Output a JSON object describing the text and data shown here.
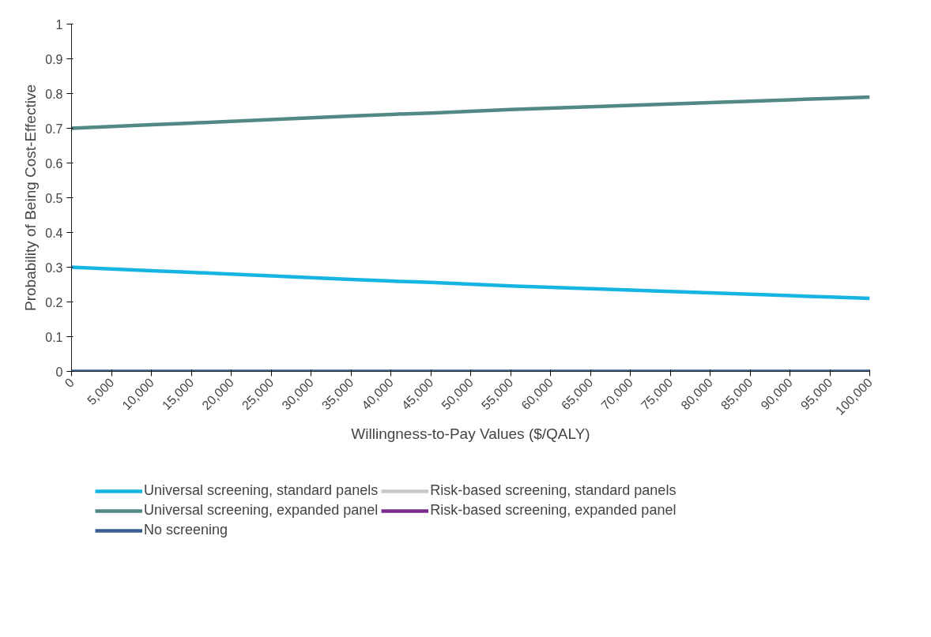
{
  "chart_data": {
    "type": "line",
    "xlabel": "Willingness-to-Pay Values ($/QALY)",
    "ylabel": "Probability of Being Cost-Effective",
    "x": [
      0,
      5000,
      10000,
      15000,
      20000,
      25000,
      30000,
      35000,
      40000,
      45000,
      50000,
      55000,
      60000,
      65000,
      70000,
      75000,
      80000,
      85000,
      90000,
      95000,
      100000
    ],
    "series": [
      {
        "name": "Universal screening, standard panels",
        "color": "#16b4e3",
        "values": [
          0.3,
          0.295,
          0.29,
          0.285,
          0.28,
          0.275,
          0.27,
          0.265,
          0.26,
          0.256,
          0.251,
          0.246,
          0.242,
          0.238,
          0.234,
          0.23,
          0.226,
          0.222,
          0.218,
          0.214,
          0.21
        ]
      },
      {
        "name": "Risk-based screening, standard panels",
        "color": "#c8c8c8",
        "values": [
          null,
          null,
          null,
          null,
          null,
          null,
          null,
          null,
          null,
          null,
          null,
          null,
          null,
          null,
          null,
          null,
          null,
          null,
          null,
          null,
          null
        ]
      },
      {
        "name": "Universal screening, expanded panel",
        "color": "#528886",
        "values": [
          0.7,
          0.705,
          0.71,
          0.715,
          0.72,
          0.725,
          0.73,
          0.735,
          0.74,
          0.744,
          0.749,
          0.754,
          0.758,
          0.762,
          0.766,
          0.77,
          0.774,
          0.778,
          0.782,
          0.786,
          0.79
        ]
      },
      {
        "name": "Risk-based screening, expanded panel",
        "color": "#7b2d8e",
        "values": [
          null,
          null,
          null,
          null,
          null,
          null,
          null,
          null,
          null,
          null,
          null,
          null,
          null,
          null,
          null,
          null,
          null,
          null,
          null,
          null,
          null
        ]
      },
      {
        "name": "No screening",
        "color": "#3a6092",
        "values": [
          0,
          0,
          0,
          0,
          0,
          0,
          0,
          0,
          0,
          0,
          0,
          0,
          0,
          0,
          0,
          0,
          0,
          0,
          0,
          0,
          0
        ]
      }
    ],
    "xlim": [
      0,
      100000
    ],
    "xticks": [
      0,
      {
        "value": 5000,
        "label": "5,000"
      },
      {
        "value": 10000,
        "label": "10,000"
      },
      {
        "value": 15000,
        "label": "15,000"
      },
      {
        "value": 20000,
        "label": "20,000"
      },
      {
        "value": 25000,
        "label": "25,000"
      },
      {
        "value": 30000,
        "label": "30,000"
      },
      {
        "value": 35000,
        "label": "35,000"
      },
      {
        "value": 40000,
        "label": "40,000"
      },
      {
        "value": 45000,
        "label": "45,000"
      },
      {
        "value": 50000,
        "label": "50,000"
      },
      {
        "value": 55000,
        "label": "55,000"
      },
      {
        "value": 60000,
        "label": "60,000"
      },
      {
        "value": 65000,
        "label": "65,000"
      },
      {
        "value": 70000,
        "label": "70,000"
      },
      {
        "value": 75000,
        "label": "75,000"
      },
      {
        "value": 80000,
        "label": "80,000"
      },
      {
        "value": 85000,
        "label": "85,000"
      },
      {
        "value": 90000,
        "label": "90,000"
      },
      {
        "value": 95000,
        "label": "95,000"
      },
      {
        "value": 100000,
        "label": "100,000"
      }
    ],
    "ylim": [
      0,
      1
    ],
    "yticks": [
      0,
      0.1,
      0.2,
      0.3,
      0.4,
      0.5,
      0.6,
      0.7,
      0.8,
      0.9,
      1
    ],
    "grid": false,
    "legend": "bottom",
    "marker": "none",
    "line_style": "solid"
  }
}
